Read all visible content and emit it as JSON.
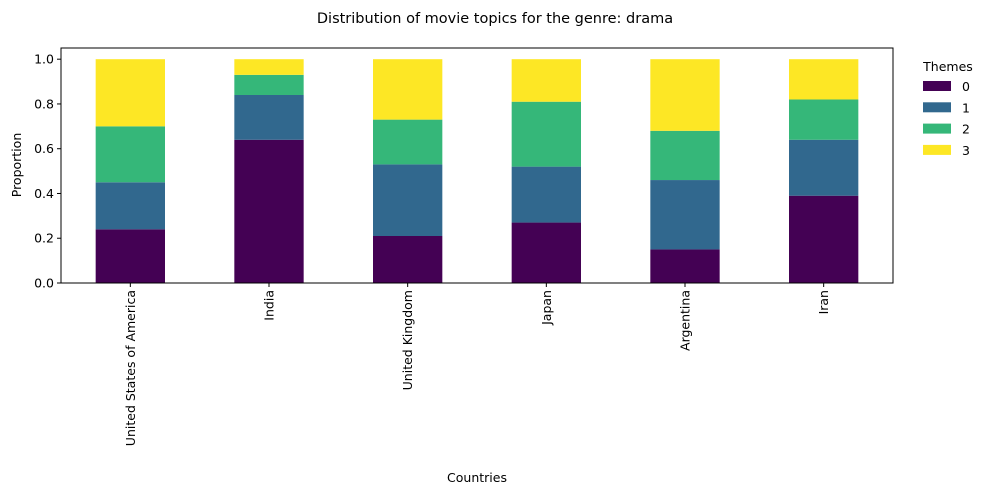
{
  "chart_data": {
    "type": "bar",
    "stacked": true,
    "title": "Distribution of movie topics for the genre: drama",
    "xlabel": "Countries",
    "ylabel": "Proportion",
    "ylim": [
      0,
      1.05
    ],
    "yticks": [
      0.0,
      0.2,
      0.4,
      0.6,
      0.8,
      1.0
    ],
    "ytick_labels": [
      "0.0",
      "0.2",
      "0.4",
      "0.6",
      "0.8",
      "1.0"
    ],
    "grid": false,
    "legend_title": "Themes",
    "legend_position": "outside-top-right",
    "categories": [
      "United States of America",
      "India",
      "United Kingdom",
      "Japan",
      "Argentina",
      "Iran"
    ],
    "series": [
      {
        "name": "0",
        "color": "#440154",
        "values": [
          0.24,
          0.64,
          0.21,
          0.27,
          0.15,
          0.39
        ]
      },
      {
        "name": "1",
        "color": "#31688e",
        "values": [
          0.21,
          0.2,
          0.32,
          0.25,
          0.31,
          0.25
        ]
      },
      {
        "name": "2",
        "color": "#35b779",
        "values": [
          0.25,
          0.09,
          0.2,
          0.29,
          0.22,
          0.18
        ]
      },
      {
        "name": "3",
        "color": "#fde725",
        "values": [
          0.3,
          0.07,
          0.27,
          0.19,
          0.32,
          0.18
        ]
      }
    ]
  }
}
